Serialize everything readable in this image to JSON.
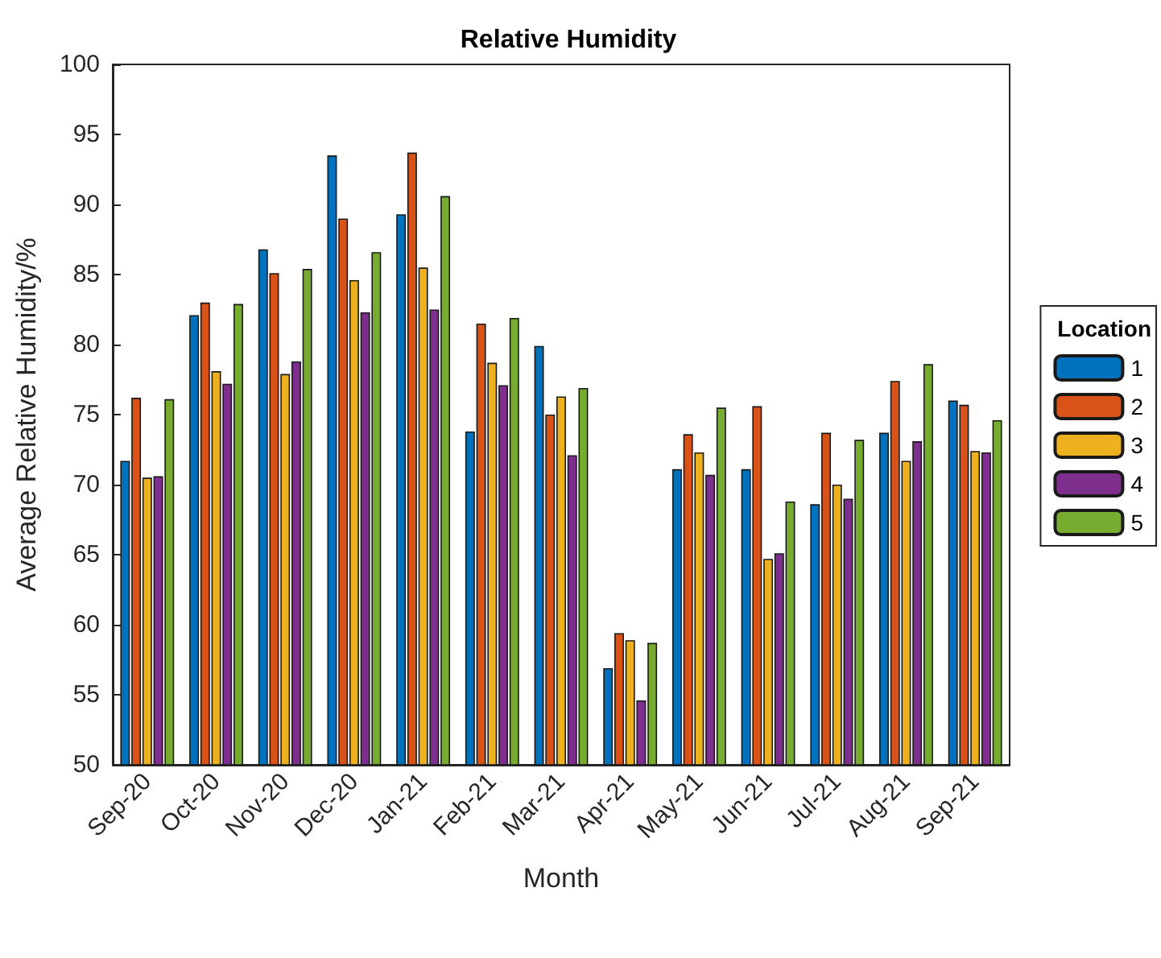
{
  "chart_data": {
    "type": "bar",
    "title": "Relative Humidity",
    "xlabel": "Month",
    "ylabel": "Average Relative Humidity/%",
    "legend_title": "Location",
    "categories": [
      "Sep-20",
      "Oct-20",
      "Nov-20",
      "Dec-20",
      "Jan-21",
      "Feb-21",
      "Mar-21",
      "Apr-21",
      "May-21",
      "Jun-21",
      "Jul-21",
      "Aug-21",
      "Sep-21"
    ],
    "series": [
      {
        "name": "1",
        "color": "#0072bd",
        "values": [
          71.7,
          82.1,
          86.8,
          93.5,
          89.3,
          73.8,
          79.9,
          56.9,
          71.1,
          71.1,
          68.6,
          73.7,
          76.0
        ]
      },
      {
        "name": "2",
        "color": "#d95319",
        "values": [
          76.2,
          83.0,
          85.1,
          89.0,
          93.7,
          81.5,
          75.0,
          59.4,
          73.6,
          75.6,
          73.7,
          77.4,
          75.7
        ]
      },
      {
        "name": "3",
        "color": "#edb120",
        "values": [
          70.5,
          78.1,
          77.9,
          84.6,
          85.5,
          78.7,
          76.3,
          58.9,
          72.3,
          64.7,
          70.0,
          71.7,
          72.4
        ]
      },
      {
        "name": "4",
        "color": "#7e2f8e",
        "values": [
          70.6,
          77.2,
          78.8,
          82.3,
          82.5,
          77.1,
          72.1,
          54.6,
          70.7,
          65.1,
          69.0,
          73.1,
          72.3
        ]
      },
      {
        "name": "5",
        "color": "#77ac30",
        "values": [
          76.1,
          82.9,
          85.4,
          86.6,
          90.6,
          81.9,
          76.9,
          58.7,
          75.5,
          68.8,
          73.2,
          78.6,
          74.6
        ]
      }
    ],
    "ylim": [
      50,
      100
    ],
    "yticks": [
      50,
      55,
      60,
      65,
      70,
      75,
      80,
      85,
      90,
      95,
      100
    ],
    "grid": false,
    "legend": "right"
  }
}
